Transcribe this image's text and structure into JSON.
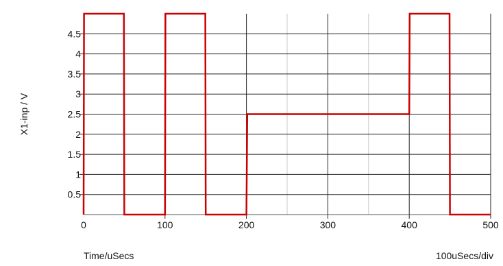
{
  "chart_data": {
    "type": "line",
    "ylabel": "X1-inp / V",
    "xlabel": "Time/uSecs",
    "scale_label": "100uSecs/div",
    "xlim": [
      0,
      500
    ],
    "ylim": [
      0,
      5
    ],
    "x_ticks": [
      0,
      100,
      200,
      300,
      400,
      500
    ],
    "x_tick_labels": [
      "0",
      "100",
      "200",
      "300",
      "400",
      "500"
    ],
    "y_ticks": [
      0.5,
      1,
      1.5,
      2,
      2.5,
      3,
      3.5,
      4,
      4.5
    ],
    "y_tick_labels": [
      "0.5",
      "1",
      "1.5",
      "2",
      "2.5",
      "3",
      "3.5",
      "4",
      "4.5"
    ],
    "grid": true,
    "series": [
      {
        "color": "#cc0000",
        "x": [
          0,
          0.5,
          49.5,
          50,
          100,
          100.5,
          149.5,
          150,
          200,
          201,
          400,
          400.5,
          449.5,
          450,
          500
        ],
        "y": [
          0,
          5,
          5,
          0,
          0,
          5,
          5,
          0,
          0,
          2.5,
          2.5,
          5,
          5,
          0,
          0
        ]
      }
    ]
  }
}
